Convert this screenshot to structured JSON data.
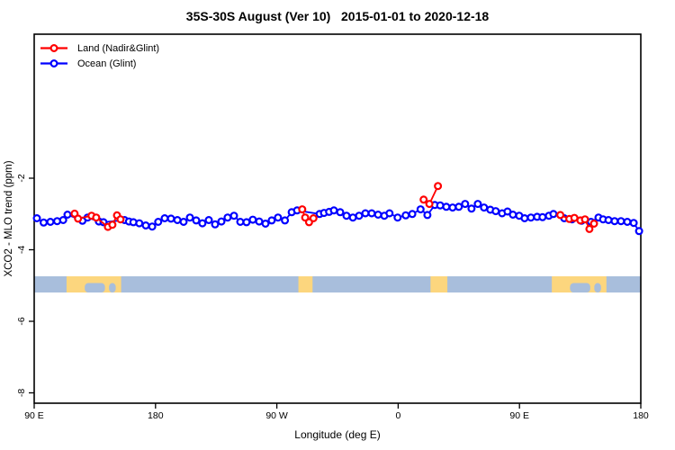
{
  "chart_data": {
    "type": "line",
    "title": "35S-30S August (Ver 10)   2015-01-01 to 2020-12-18",
    "xlabel": "Longitude (deg E)",
    "ylabel": "XCO2 - MLO trend (ppm)",
    "x_axis": {
      "range": [
        90,
        540
      ],
      "ticks": [
        {
          "value": 90,
          "label": "90 E"
        },
        {
          "value": 180,
          "label": "180"
        },
        {
          "value": 270,
          "label": "90 W"
        },
        {
          "value": 360,
          "label": "0"
        },
        {
          "value": 450,
          "label": "90 E"
        },
        {
          "value": 540,
          "label": "180"
        }
      ]
    },
    "y_axis": {
      "range": [
        -8.3,
        2.05
      ],
      "ticks": [
        {
          "value": -2,
          "label": "-2"
        },
        {
          "value": -4,
          "label": "-4"
        },
        {
          "value": -6,
          "label": "-6"
        },
        {
          "value": -8,
          "label": "-8"
        }
      ]
    },
    "legend_position": "top-left",
    "grid": false,
    "map_strip": {
      "ocean_color": "#A8BEDC",
      "land_color": "#FCD67E",
      "center_value": -5,
      "land_segments": [
        {
          "from": 114.0,
          "to": 154.5,
          "bites": [
            {
              "from": 127.5,
              "to": 142.5
            },
            {
              "from": 145.5,
              "to": 150.5
            }
          ]
        },
        {
          "from": 286.0,
          "to": 296.5,
          "bites": []
        },
        {
          "from": 384.0,
          "to": 396.5,
          "bites": []
        },
        {
          "from": 474.0,
          "to": 514.5,
          "bites": [
            {
              "from": 487.5,
              "to": 502.5
            },
            {
              "from": 505.5,
              "to": 510.5
            }
          ]
        }
      ]
    },
    "series": [
      {
        "name": "Land (Nadir&Glint)",
        "color": "#FF0000",
        "points": [
          [
            120.0,
            -2.99
          ],
          [
            122.5,
            -3.13
          ],
          [
            132.5,
            -3.05
          ],
          [
            136.0,
            -3.1
          ],
          [
            144.7,
            -3.36
          ],
          [
            148.0,
            -3.3
          ],
          [
            151.4,
            -3.04
          ],
          [
            154.0,
            -3.15
          ],
          [
            288.8,
            -2.87
          ],
          [
            291.0,
            -3.1
          ],
          [
            293.9,
            -3.23
          ],
          [
            297.2,
            -3.12
          ],
          [
            378.9,
            -2.6
          ],
          [
            383.2,
            -2.72
          ],
          [
            389.5,
            -2.22
          ],
          [
            480.3,
            -3.03
          ],
          [
            487.0,
            -3.14
          ],
          [
            490.7,
            -3.11
          ],
          [
            495.2,
            -3.18
          ],
          [
            498.6,
            -3.15
          ],
          [
            501.9,
            -3.42
          ],
          [
            505.3,
            -3.27
          ]
        ]
      },
      {
        "name": "Ocean (Glint)",
        "color": "#0000FF",
        "points": [
          [
            92.0,
            -3.12
          ],
          [
            97.0,
            -3.24
          ],
          [
            102.0,
            -3.22
          ],
          [
            107.0,
            -3.2
          ],
          [
            111.5,
            -3.17
          ],
          [
            114.7,
            -3.02
          ],
          [
            125.8,
            -3.19
          ],
          [
            129.6,
            -3.1
          ],
          [
            138.0,
            -3.21
          ],
          [
            141.4,
            -3.23
          ],
          [
            157.0,
            -3.17
          ],
          [
            160.3,
            -3.21
          ],
          [
            163.6,
            -3.23
          ],
          [
            168.0,
            -3.26
          ],
          [
            172.8,
            -3.32
          ],
          [
            177.5,
            -3.35
          ],
          [
            182.0,
            -3.22
          ],
          [
            186.8,
            -3.12
          ],
          [
            191.5,
            -3.13
          ],
          [
            196.2,
            -3.17
          ],
          [
            200.8,
            -3.22
          ],
          [
            205.5,
            -3.1
          ],
          [
            210.2,
            -3.18
          ],
          [
            214.8,
            -3.26
          ],
          [
            219.5,
            -3.17
          ],
          [
            224.2,
            -3.29
          ],
          [
            228.9,
            -3.21
          ],
          [
            233.5,
            -3.1
          ],
          [
            238.2,
            -3.05
          ],
          [
            242.9,
            -3.22
          ],
          [
            247.5,
            -3.23
          ],
          [
            252.2,
            -3.16
          ],
          [
            256.9,
            -3.21
          ],
          [
            261.6,
            -3.27
          ],
          [
            266.2,
            -3.18
          ],
          [
            270.9,
            -3.1
          ],
          [
            276.0,
            -3.18
          ],
          [
            281.0,
            -2.95
          ],
          [
            285.0,
            -2.9
          ],
          [
            301.7,
            -3.0
          ],
          [
            305.0,
            -2.97
          ],
          [
            308.8,
            -2.94
          ],
          [
            312.3,
            -2.9
          ],
          [
            317.0,
            -2.95
          ],
          [
            321.7,
            -3.05
          ],
          [
            326.4,
            -3.1
          ],
          [
            331.0,
            -3.05
          ],
          [
            335.7,
            -2.98
          ],
          [
            340.4,
            -2.98
          ],
          [
            345.1,
            -3.02
          ],
          [
            349.7,
            -3.05
          ],
          [
            353.6,
            -2.98
          ],
          [
            359.6,
            -3.1
          ],
          [
            365.6,
            -3.04
          ],
          [
            370.5,
            -3.0
          ],
          [
            376.6,
            -2.87
          ],
          [
            381.7,
            -3.03
          ],
          [
            387.2,
            -2.75
          ],
          [
            391.2,
            -2.76
          ],
          [
            395.7,
            -2.8
          ],
          [
            400.4,
            -2.82
          ],
          [
            405.0,
            -2.8
          ],
          [
            409.7,
            -2.72
          ],
          [
            414.4,
            -2.85
          ],
          [
            419.1,
            -2.72
          ],
          [
            423.7,
            -2.82
          ],
          [
            428.4,
            -2.88
          ],
          [
            432.4,
            -2.92
          ],
          [
            437.1,
            -2.98
          ],
          [
            441.1,
            -2.93
          ],
          [
            445.1,
            -3.02
          ],
          [
            449.8,
            -3.05
          ],
          [
            453.8,
            -3.12
          ],
          [
            458.5,
            -3.1
          ],
          [
            463.1,
            -3.08
          ],
          [
            467.1,
            -3.09
          ],
          [
            471.8,
            -3.05
          ],
          [
            475.2,
            -3.0
          ],
          [
            483.2,
            -3.12
          ],
          [
            489.0,
            -3.15
          ],
          [
            496.0,
            -3.19
          ],
          [
            503.0,
            -3.22
          ],
          [
            508.6,
            -3.1
          ],
          [
            512.0,
            -3.15
          ],
          [
            516.0,
            -3.17
          ],
          [
            520.6,
            -3.2
          ],
          [
            525.3,
            -3.2
          ],
          [
            530.0,
            -3.22
          ],
          [
            534.7,
            -3.25
          ],
          [
            538.7,
            -3.48
          ]
        ]
      }
    ]
  }
}
